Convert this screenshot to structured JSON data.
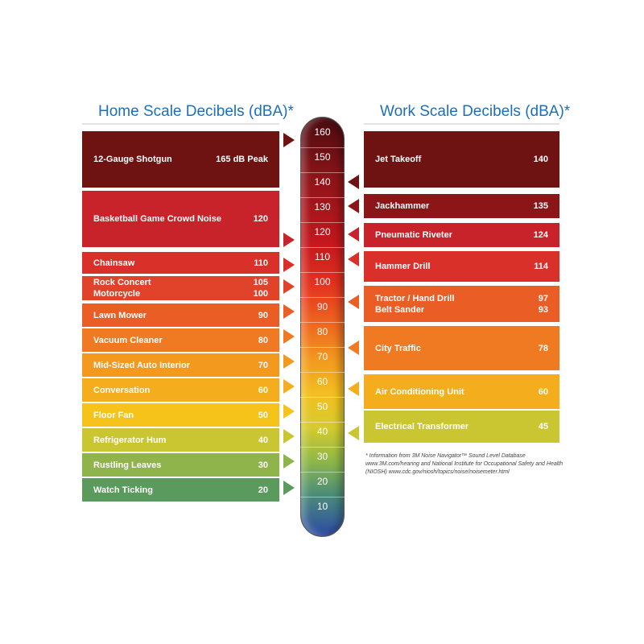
{
  "home_title": "Home Scale Decibels (dBA)*",
  "work_title": "Work Scale Decibels (dBA)*",
  "home_items": [
    {
      "label": "12-Gauge Shotgun",
      "value": "165 dB Peak",
      "color": "#6e1212"
    },
    {
      "label": "Basketball Game Crowd Noise",
      "value": "120",
      "color": "#c8232a"
    },
    {
      "label": "Chainsaw",
      "value": "110",
      "color": "#d9302a"
    },
    {
      "label": "Rock Concert",
      "value": "105",
      "label2": "Motorcycle",
      "value2": "100",
      "color": "#e0432a"
    },
    {
      "label": "Lawn Mower",
      "value": "90",
      "color": "#ea5e25"
    },
    {
      "label": "Vacuum Cleaner",
      "value": "80",
      "color": "#ef7a22"
    },
    {
      "label": "Mid-Sized Auto Interior",
      "value": "70",
      "color": "#f39a1e"
    },
    {
      "label": "Conversation",
      "value": "60",
      "color": "#f4ad1c"
    },
    {
      "label": "Floor Fan",
      "value": "50",
      "color": "#f5c31a"
    },
    {
      "label": "Refrigerator Hum",
      "value": "40",
      "color": "#c9c632"
    },
    {
      "label": "Rustling Leaves",
      "value": "30",
      "color": "#8fb44c"
    },
    {
      "label": "Watch Ticking",
      "value": "20",
      "color": "#5a9a5c"
    }
  ],
  "work_items": [
    {
      "label": "Jet Takeoff",
      "value": "140",
      "color": "#6e1212"
    },
    {
      "label": "Jackhammer",
      "value": "135",
      "color": "#8c1518"
    },
    {
      "label": "Pneumatic Riveter",
      "value": "124",
      "color": "#c8232a"
    },
    {
      "label": "Hammer Drill",
      "value": "114",
      "color": "#d9302a"
    },
    {
      "label": "Tractor / Hand Drill",
      "value": "97",
      "label2": "Belt Sander",
      "value2": "93",
      "color": "#ea5e25"
    },
    {
      "label": "City Traffic",
      "value": "78",
      "color": "#ef7a22"
    },
    {
      "label": "Air Conditioning Unit",
      "value": "60",
      "color": "#f4ad1c"
    },
    {
      "label": "Electrical Transformer",
      "value": "45",
      "color": "#c9c632"
    }
  ],
  "scale_ticks": [
    "160",
    "150",
    "140",
    "130",
    "120",
    "110",
    "100",
    "90",
    "80",
    "70",
    "60",
    "50",
    "40",
    "30",
    "20",
    "10"
  ],
  "footnote": "* Information from 3M Noise Navigator™ Sound Level Database www.3M.com/hearing and National Institute for Occupational Safety and Health (NIOSH) www.cdc.gov/niosh/topics/noise/noisemeter.html"
}
